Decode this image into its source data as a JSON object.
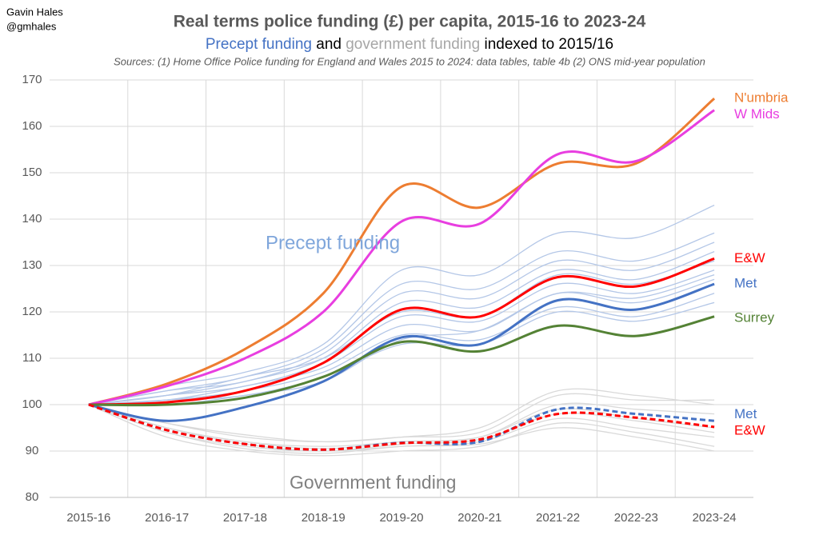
{
  "chart_data": {
    "type": "line",
    "author": "Gavin Hales",
    "handle": "@gmhales",
    "title": "Real terms police funding (£) per capita, 2015-16 to 2023-24",
    "subtitle_parts": [
      {
        "text": "Precept funding",
        "color": "#4472c4"
      },
      {
        "text": "and",
        "color": "#000000"
      },
      {
        "text": "government funding",
        "color": "#a6a6a6"
      },
      {
        "text": "indexed to 2015/16",
        "color": "#000000"
      }
    ],
    "source": "Sources: (1) Home Office Police funding for England and Wales 2015 to 2024: data tables, table 4b (2) ONS mid-year population",
    "annotations": [
      {
        "text": "Precept funding",
        "color": "#7fa6db"
      },
      {
        "text": "Government funding",
        "color": "#808080"
      }
    ],
    "categories": [
      "2015-16",
      "2016-17",
      "2017-18",
      "2018-19",
      "2019-20",
      "2020-21",
      "2021-22",
      "2022-23",
      "2023-24"
    ],
    "ylim": [
      80,
      170
    ],
    "yticks": [
      80,
      90,
      100,
      110,
      120,
      130,
      140,
      150,
      160,
      170
    ],
    "grid": true,
    "series": [
      {
        "color": "#b4c7e7",
        "values": [
          100,
          101,
          104,
          108,
          117,
          116,
          124,
          122,
          127
        ]
      },
      {
        "color": "#b4c7e7",
        "values": [
          100,
          102,
          105,
          110,
          122,
          121,
          129,
          127,
          133
        ]
      },
      {
        "color": "#b4c7e7",
        "values": [
          100,
          103,
          106,
          112,
          126,
          125,
          133,
          131,
          137
        ]
      },
      {
        "color": "#b4c7e7",
        "values": [
          100,
          101,
          103,
          107,
          115,
          114,
          121,
          119,
          124
        ]
      },
      {
        "color": "#b4c7e7",
        "values": [
          100,
          102,
          104,
          109,
          119,
          118,
          126,
          124,
          129
        ]
      },
      {
        "color": "#b4c7e7",
        "values": [
          100,
          104,
          107,
          113,
          129,
          128,
          137,
          136,
          143
        ]
      },
      {
        "color": "#b4c7e7",
        "values": [
          100,
          101,
          102,
          106,
          113,
          113,
          120,
          118,
          122
        ]
      },
      {
        "color": "#b4c7e7",
        "values": [
          100,
          103,
          105,
          111,
          124,
          123,
          131,
          129,
          135
        ]
      },
      {
        "color": "#b4c7e7",
        "values": [
          100,
          102,
          106,
          110,
          120,
          119,
          128,
          126,
          131
        ]
      },
      {
        "color": "#b4c7e7",
        "values": [
          100,
          100,
          102,
          105,
          114,
          116,
          124,
          123,
          128
        ]
      },
      {
        "color": "#d9d9d9",
        "values": [
          100,
          95,
          92,
          91,
          92,
          93,
          100,
          99,
          98
        ]
      },
      {
        "color": "#d9d9d9",
        "values": [
          100,
          96,
          93,
          92,
          93,
          94,
          102,
          101,
          101
        ]
      },
      {
        "color": "#d9d9d9",
        "values": [
          100,
          94,
          91,
          90,
          91,
          92,
          97,
          95,
          93
        ]
      },
      {
        "color": "#d9d9d9",
        "values": [
          100,
          93,
          90,
          89,
          90,
          91,
          96,
          94,
          91
        ]
      },
      {
        "color": "#d9d9d9",
        "values": [
          100,
          95,
          92,
          90.5,
          92,
          93,
          99,
          97,
          95
        ]
      },
      {
        "color": "#d9d9d9",
        "values": [
          100,
          96,
          93.5,
          92,
          93,
          95,
          103,
          102,
          100
        ]
      },
      {
        "color": "#d9d9d9",
        "values": [
          100,
          94,
          90.5,
          89.5,
          91,
          91.5,
          95,
          93,
          90
        ]
      },
      {
        "color": "#d9d9d9",
        "values": [
          100,
          95,
          91.5,
          90,
          91.5,
          92.5,
          98,
          96.5,
          94
        ]
      },
      {
        "name": "N'umbria",
        "color": "#ed7d31",
        "values": [
          100,
          104.5,
          112,
          124,
          147,
          142.5,
          152,
          152,
          166
        ]
      },
      {
        "name": "W Mids",
        "color": "#e83ee0",
        "values": [
          100,
          104,
          110,
          120,
          139.5,
          139,
          154,
          152.5,
          163.5
        ]
      },
      {
        "name": "E&W",
        "color": "#ff0000",
        "values": [
          100,
          100.5,
          103,
          109,
          120.5,
          119,
          127.5,
          125.5,
          131.5
        ]
      },
      {
        "name": "Met",
        "color": "#4472c4",
        "values": [
          100,
          96.5,
          99.5,
          105,
          114.5,
          113,
          122.5,
          120.5,
          126
        ]
      },
      {
        "name": "Surrey",
        "color": "#548235",
        "values": [
          100,
          100,
          101.5,
          106,
          113.5,
          111.5,
          117,
          114.8,
          119
        ]
      },
      {
        "name": "Met",
        "color": "#4472c4",
        "dashed": true,
        "values": [
          100,
          94.5,
          91.5,
          90.3,
          91.8,
          92,
          99,
          98,
          96.5
        ]
      },
      {
        "name": "E&W",
        "color": "#ff0000",
        "dashed": true,
        "values": [
          100,
          94.5,
          91.5,
          90.3,
          91.7,
          92.5,
          98,
          97.2,
          95.2
        ]
      }
    ]
  }
}
